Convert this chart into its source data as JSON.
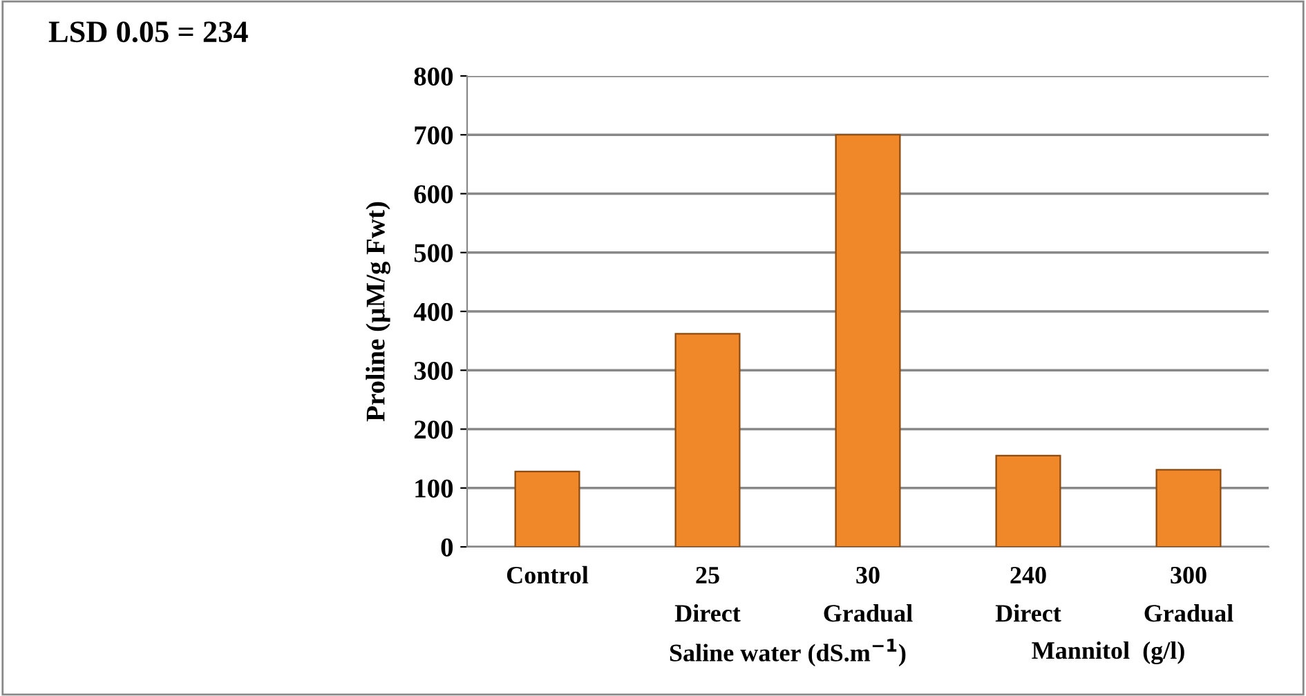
{
  "chart_data": {
    "type": "bar",
    "ylabel": "Proline (µM/g Fwt)",
    "categories": [
      "Control",
      "25\nDirect",
      "30\nGradual",
      "240\nDirect",
      "300\nGradual"
    ],
    "values": [
      128,
      362,
      700,
      155,
      131
    ],
    "color": "#f0882a",
    "ylim": [
      0,
      800
    ],
    "yticks": [
      0,
      100,
      200,
      300,
      400,
      500,
      600,
      700,
      800
    ],
    "grid": "y",
    "annotations": [
      "LSD 0.05 = 234",
      "Saline water (dS.m$^{−1}$)",
      "Mannitol  (g/l)"
    ]
  }
}
